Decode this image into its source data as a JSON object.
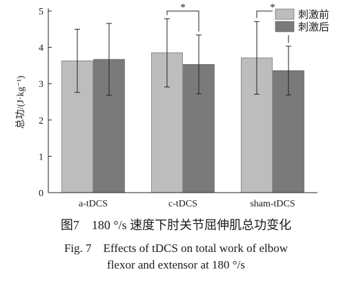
{
  "chart_data": {
    "type": "bar",
    "categories": [
      "a-tDCS",
      "c-tDCS",
      "sham-tDCS"
    ],
    "series": [
      {
        "name": "刺激前",
        "values": [
          3.63,
          3.85,
          3.71
        ],
        "error": [
          0.87,
          0.94,
          1.0
        ],
        "color": "#bdbdbd"
      },
      {
        "name": "刺激后",
        "values": [
          3.67,
          3.53,
          3.36
        ],
        "error": [
          0.99,
          0.81,
          0.67
        ],
        "color": "#7a7a7a"
      }
    ],
    "ylabel": "总功/(J·kg⁻¹)",
    "ylim": [
      0,
      5
    ],
    "yticks": [
      0,
      1,
      2,
      3,
      4,
      5
    ],
    "grid": false,
    "legend": "top-right",
    "annotations": [
      {
        "category": "c-tDCS",
        "text": "*"
      },
      {
        "category": "sham-tDCS",
        "text": "*"
      }
    ]
  },
  "caption": {
    "cn": "图7　180 °/s 速度下肘关节屈伸肌总功变化",
    "en_line1": "Fig. 7　Effects of tDCS on total work of elbow",
    "en_line2": "flexor and extensor at 180 °/s"
  }
}
